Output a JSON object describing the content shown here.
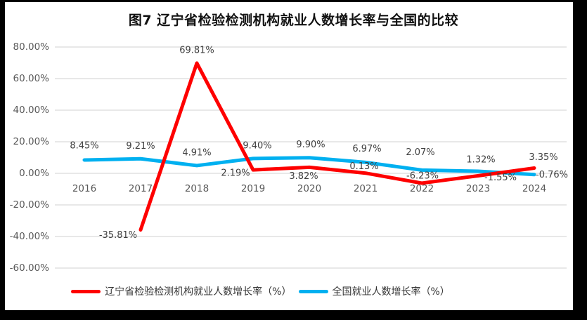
{
  "title": "图7 辽宁省检验检测机构就业人数增长率与全国的比较",
  "chart_data": {
    "type": "line",
    "title": "图7 辽宁省检验检测机构就业人数增长率与全国的比较",
    "categories": [
      "2016",
      "2017",
      "2018",
      "2019",
      "2020",
      "2021",
      "2022",
      "2023",
      "2024"
    ],
    "series": [
      {
        "name": "辽宁省检验检测机构就业人数增长率（%）",
        "color": "#fe0000",
        "values": [
          null,
          -35.81,
          69.81,
          2.19,
          3.82,
          0.13,
          -6.23,
          -1.55,
          3.35
        ],
        "labels": [
          null,
          "-35.81%",
          "69.81%",
          "2.19%",
          "3.82%",
          "0.13%",
          "-6.23%",
          "-1.55%",
          "3.35%"
        ]
      },
      {
        "name": "全国就业人数增长率（%）",
        "color": "#00b0f0",
        "values": [
          8.45,
          9.21,
          4.91,
          9.4,
          9.9,
          6.97,
          2.07,
          1.32,
          -0.76
        ],
        "labels": [
          "8.45%",
          "9.21%",
          "4.91%",
          "9.40%",
          "9.90%",
          "6.97%",
          "2.07%",
          "1.32%",
          "-0.76%"
        ]
      }
    ],
    "y_axis": {
      "max": 80,
      "min": -60,
      "step": 20,
      "tick_labels": [
        "80.00%",
        "60.00%",
        "40.00%",
        "20.00%",
        "0.00%",
        "-20.00%",
        "-40.00%",
        "-60.00%"
      ],
      "format": "percent"
    },
    "grid": true,
    "legend_position": "bottom"
  },
  "legend": {
    "items": [
      {
        "label": "辽宁省检验检测机构就业人数增长率（%）",
        "color": "#fe0000"
      },
      {
        "label": "全国就业人数增长率（%）",
        "color": "#00b0f0"
      }
    ]
  },
  "colors": {
    "gridline": "#d9d9d9",
    "axis_text": "#595959",
    "data_label_text": "#3f3f3f",
    "frame_border": "#000000",
    "background": "#ffffff"
  }
}
